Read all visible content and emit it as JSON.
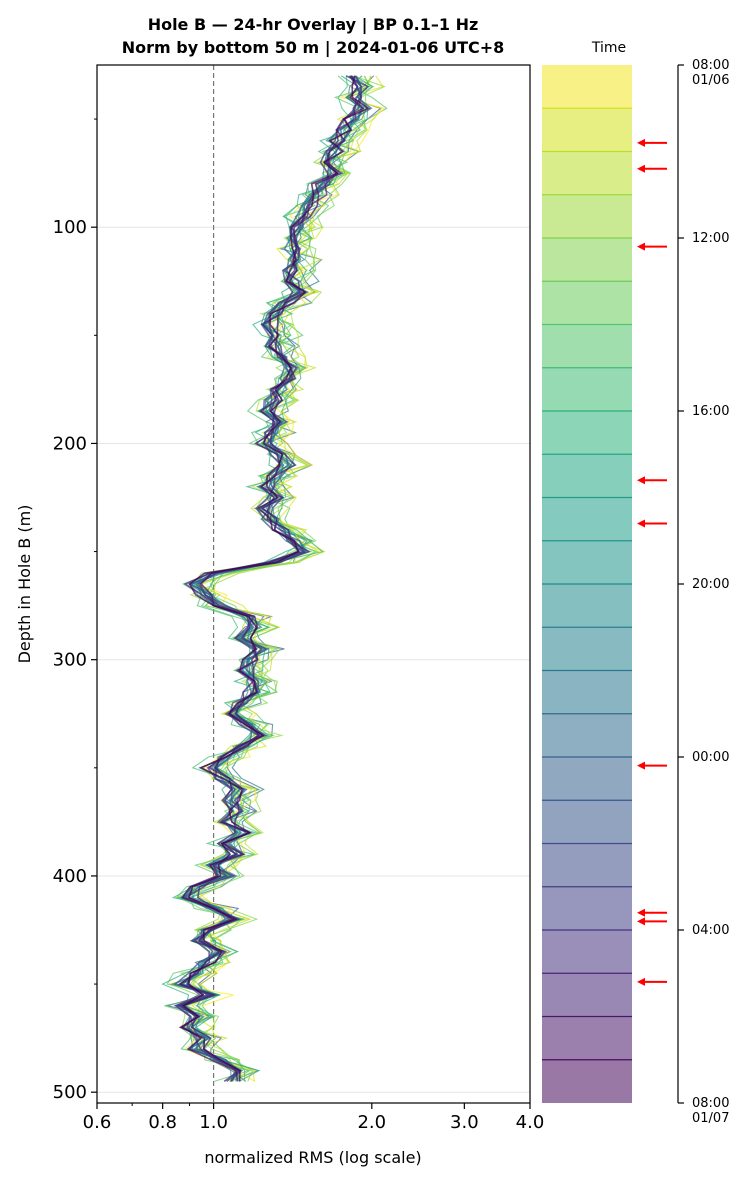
{
  "chart_data": [
    {
      "type": "line",
      "title": "Hole B — 24-hr Overlay  |  BP 0.1–1 Hz",
      "subtitle": "Norm by bottom 50 m  |  2024-01-06 UTC+8",
      "xlabel": "normalized RMS  (log scale)",
      "ylabel": "Depth in Hole B (m)",
      "xscale": "log",
      "xlim": [
        0.6,
        4.0
      ],
      "ylim": [
        505,
        25
      ],
      "x_ticks": [
        "0.6",
        "0.8",
        "1.0",
        "2.0",
        "3.0",
        "4.0"
      ],
      "y_ticks": [
        "100",
        "200",
        "300",
        "400",
        "500"
      ],
      "grid": "horizontal",
      "reference_line_x": 1.0,
      "profile_depth": [
        30,
        35,
        40,
        45,
        50,
        55,
        60,
        65,
        70,
        75,
        80,
        85,
        90,
        95,
        100,
        105,
        110,
        115,
        120,
        125,
        130,
        135,
        140,
        145,
        150,
        155,
        160,
        165,
        170,
        175,
        180,
        185,
        190,
        195,
        200,
        205,
        210,
        215,
        220,
        225,
        230,
        235,
        240,
        245,
        250,
        255,
        260,
        265,
        270,
        275,
        280,
        285,
        290,
        295,
        300,
        305,
        310,
        315,
        320,
        325,
        330,
        335,
        340,
        345,
        350,
        355,
        360,
        365,
        370,
        375,
        380,
        385,
        390,
        395,
        400,
        405,
        410,
        415,
        420,
        425,
        430,
        435,
        440,
        445,
        450,
        455,
        460,
        465,
        470,
        475,
        480,
        485,
        490,
        495
      ],
      "profile_rms": [
        1.82,
        1.9,
        1.85,
        1.92,
        1.82,
        1.78,
        1.72,
        1.7,
        1.65,
        1.68,
        1.6,
        1.58,
        1.52,
        1.48,
        1.45,
        1.42,
        1.4,
        1.44,
        1.4,
        1.42,
        1.46,
        1.38,
        1.3,
        1.28,
        1.32,
        1.3,
        1.34,
        1.4,
        1.38,
        1.33,
        1.3,
        1.26,
        1.33,
        1.28,
        1.25,
        1.32,
        1.38,
        1.3,
        1.26,
        1.3,
        1.25,
        1.28,
        1.34,
        1.42,
        1.48,
        1.3,
        1.0,
        0.92,
        0.96,
        1.02,
        1.16,
        1.2,
        1.14,
        1.22,
        1.18,
        1.15,
        1.2,
        1.18,
        1.13,
        1.1,
        1.16,
        1.21,
        1.14,
        1.05,
        0.98,
        1.04,
        1.12,
        1.08,
        1.1,
        1.06,
        1.13,
        1.06,
        1.1,
        1.0,
        1.05,
        0.93,
        0.9,
        1.0,
        1.08,
        0.98,
        0.94,
        1.02,
        0.97,
        0.92,
        0.87,
        0.98,
        0.86,
        0.93,
        0.9,
        0.95,
        0.93,
        1.02,
        1.12,
        1.08
      ],
      "series": [
        {
          "hour": 0,
          "color": "#440154"
        },
        {
          "hour": 1,
          "color": "#481769"
        },
        {
          "hour": 2,
          "color": "#472a7a"
        },
        {
          "hour": 3,
          "color": "#433d84"
        },
        {
          "hour": 4,
          "color": "#3d4e8a"
        },
        {
          "hour": 5,
          "color": "#355e8d"
        },
        {
          "hour": 6,
          "color": "#2e6d8e"
        },
        {
          "hour": 7,
          "color": "#297b8e"
        },
        {
          "hour": 8,
          "color": "#23898e"
        },
        {
          "hour": 9,
          "color": "#1f968b"
        },
        {
          "hour": 10,
          "color": "#20a386"
        },
        {
          "hour": 11,
          "color": "#29af7f"
        },
        {
          "hour": 12,
          "color": "#3dbc74"
        },
        {
          "hour": 13,
          "color": "#56c667"
        },
        {
          "hour": 14,
          "color": "#75d054"
        },
        {
          "hour": 15,
          "color": "#95d840"
        },
        {
          "hour": 16,
          "color": "#bade28"
        },
        {
          "hour": 17,
          "color": "#dde318"
        },
        {
          "hour": 18,
          "color": "#fde725"
        },
        {
          "hour": 19,
          "color": "#c2df23"
        },
        {
          "hour": 20,
          "color": "#86d549"
        },
        {
          "hour": 21,
          "color": "#52c569"
        },
        {
          "hour": 22,
          "color": "#2a788e"
        },
        {
          "hour": 23,
          "color": "#3b528b"
        }
      ]
    },
    {
      "type": "heatmap",
      "role": "colorbar",
      "title": "Time",
      "bands": 24,
      "colormap": [
        "#440154",
        "#481a6c",
        "#472f7d",
        "#414487",
        "#39568c",
        "#31688e",
        "#2a788e",
        "#23888e",
        "#1f988b",
        "#22a884",
        "#35b779",
        "#54c568",
        "#7ad151",
        "#a5db36",
        "#d2e21b",
        "#fde725"
      ],
      "tick_labels": [
        "08:00\n01/06",
        "12:00",
        "16:00",
        "20:00",
        "00:00",
        "04:00",
        "08:00\n01/07"
      ],
      "tick_hours": [
        0,
        4,
        8,
        12,
        16,
        20,
        24
      ],
      "markers_hours": [
        1.8,
        2.4,
        4.2,
        9.6,
        10.6,
        16.2,
        19.6,
        19.8,
        21.2
      ],
      "marker_color": "#ff0000"
    }
  ]
}
